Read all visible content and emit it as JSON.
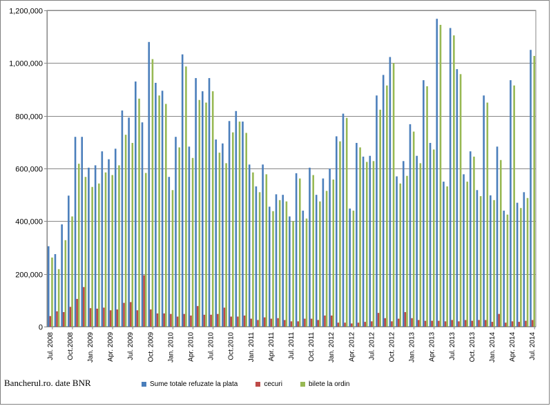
{
  "chart_data": {
    "type": "bar",
    "source_label": "Bancherul.ro. date BNR",
    "ylim": [
      0,
      1200000
    ],
    "yticks": [
      0,
      200000,
      400000,
      600000,
      800000,
      1000000,
      1200000
    ],
    "ytick_labels": [
      "0",
      "200,000",
      "400,000",
      "600,000",
      "800,000",
      "1,000,000",
      "1,200,000"
    ],
    "grid": true,
    "legend_position": "bottom",
    "colors": {
      "sume": "#4a7ebb",
      "cecuri": "#be4b48",
      "bilete": "#98b954"
    },
    "x_tick_labels": [
      "Jul. 2008",
      "Oct.2008",
      "Jan. 2009",
      "Apr. 2009",
      "Jul. 2009",
      "Oct. 2009",
      "Jan. 2010",
      "Apr. 2010",
      "Jul. 2010",
      "Oct.2010",
      "Jan. 2011",
      "Apr. 2011",
      "Jul. 2011",
      "Oct. 2011",
      "Jan. 2012",
      "Apr. 2012",
      "Jul. 2012",
      "Oct. 2012",
      "Jan. 2013",
      "Apr. 2013",
      "Jul. 2013",
      "Oct. 2013",
      "Jan. 2014",
      "Apr. 2014",
      "Jul. 2014"
    ],
    "series": [
      {
        "name": "Sume totale refuzate la plata",
        "values": [
          305000,
          275000,
          388000,
          497000,
          720000,
          720000,
          603000,
          612000,
          665000,
          635000,
          675000,
          820000,
          793000,
          930000,
          775000,
          1080000,
          925000,
          895000,
          568000,
          720000,
          1033000,
          683000,
          943000,
          893000,
          943000,
          710000,
          695000,
          780000,
          818000,
          778000,
          615000,
          532000,
          615000,
          455000,
          502000,
          500000,
          418000,
          582000,
          440000,
          603000,
          500000,
          562000,
          600000,
          722000,
          808000,
          448000,
          697000,
          645000,
          648000,
          877000,
          955000,
          1023000,
          570000,
          628000,
          768000,
          648000,
          935000,
          697000,
          1168000,
          550000,
          1133000,
          977000,
          578000,
          665000,
          518000,
          877000,
          498000,
          683000,
          440000,
          935000,
          470000,
          510000,
          1050000
        ]
      },
      {
        "name": "cecuri",
        "values": [
          40000,
          58000,
          55000,
          75000,
          105000,
          150000,
          70000,
          68000,
          72000,
          62000,
          65000,
          90000,
          93000,
          62000,
          195000,
          65000,
          50000,
          50000,
          48000,
          38000,
          48000,
          42000,
          78000,
          45000,
          45000,
          48000,
          72000,
          38000,
          38000,
          42000,
          30000,
          25000,
          35000,
          30000,
          32000,
          25000,
          20000,
          20000,
          30000,
          30000,
          25000,
          42000,
          42000,
          15000,
          15000,
          12000,
          15000,
          18000,
          20000,
          52000,
          32000,
          20000,
          30000,
          55000,
          32000,
          25000,
          22000,
          22000,
          22000,
          20000,
          25000,
          20000,
          25000,
          22000,
          25000,
          25000,
          18000,
          48000,
          15000,
          20000,
          18000,
          22000,
          25000
        ]
      },
      {
        "name": "bilete la ordin",
        "values": [
          262000,
          218000,
          328000,
          418000,
          618000,
          568000,
          530000,
          543000,
          585000,
          575000,
          612000,
          728000,
          697000,
          865000,
          583000,
          1015000,
          877000,
          845000,
          518000,
          680000,
          987000,
          640000,
          860000,
          850000,
          893000,
          660000,
          620000,
          737000,
          778000,
          735000,
          585000,
          510000,
          578000,
          438000,
          480000,
          475000,
          400000,
          562000,
          410000,
          575000,
          475000,
          515000,
          558000,
          703000,
          792000,
          440000,
          680000,
          625000,
          628000,
          823000,
          915000,
          1000000,
          543000,
          572000,
          740000,
          620000,
          912000,
          672000,
          1145000,
          532000,
          1105000,
          958000,
          550000,
          645000,
          495000,
          850000,
          480000,
          632000,
          425000,
          915000,
          450000,
          488000,
          1027000
        ]
      }
    ]
  }
}
